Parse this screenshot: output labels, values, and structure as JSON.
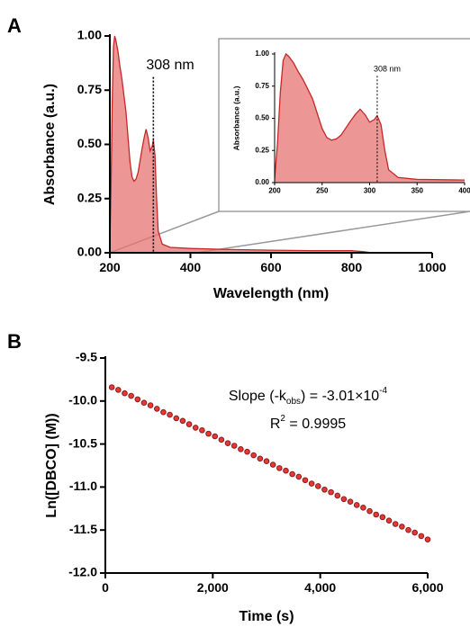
{
  "chart_data": [
    {
      "type": "area",
      "panel": "A",
      "xlabel": "Wavelength (nm)",
      "ylabel": "Absorbance (a.u.)",
      "x": [
        200,
        203,
        206,
        209,
        212,
        215,
        220,
        225,
        230,
        240,
        250,
        255,
        260,
        265,
        270,
        280,
        285,
        290,
        295,
        300,
        305,
        308,
        312,
        316,
        320,
        330,
        350,
        400,
        500,
        600,
        700,
        800,
        830,
        850,
        1000
      ],
      "values": [
        0.03,
        0.3,
        0.7,
        0.95,
        1.0,
        0.98,
        0.93,
        0.86,
        0.8,
        0.65,
        0.42,
        0.35,
        0.33,
        0.34,
        0.37,
        0.48,
        0.53,
        0.57,
        0.53,
        0.47,
        0.49,
        0.52,
        0.45,
        0.25,
        0.1,
        0.04,
        0.025,
        0.02,
        0.015,
        0.012,
        0.01,
        0.01,
        0.005,
        0.0,
        0.0
      ],
      "color": "#e57373",
      "line_color": "#c62828",
      "xlim": [
        200,
        1000
      ],
      "xticks": [
        200,
        400,
        600,
        800,
        1000
      ],
      "ylim": [
        0,
        1
      ],
      "yticks": [
        {
          "value": 0,
          "label": "0.00"
        },
        {
          "value": 0.25,
          "label": "0.25"
        },
        {
          "value": 0.5,
          "label": "0.50"
        },
        {
          "value": 0.75,
          "label": "0.75"
        },
        {
          "value": 1,
          "label": "1.00"
        }
      ],
      "annotation": {
        "text": "308 nm",
        "x": 308
      }
    },
    {
      "type": "area",
      "ylabel": "Absorbance (a.u.)",
      "x": [
        200,
        203,
        206,
        209,
        212,
        215,
        220,
        225,
        230,
        240,
        250,
        255,
        260,
        265,
        270,
        280,
        285,
        290,
        295,
        300,
        305,
        308,
        312,
        316,
        320,
        330,
        350,
        400
      ],
      "values": [
        0.03,
        0.3,
        0.7,
        0.95,
        1.0,
        0.98,
        0.93,
        0.86,
        0.8,
        0.65,
        0.42,
        0.35,
        0.33,
        0.34,
        0.37,
        0.48,
        0.53,
        0.57,
        0.53,
        0.47,
        0.49,
        0.52,
        0.45,
        0.25,
        0.1,
        0.04,
        0.025,
        0.02
      ],
      "color": "#e57373",
      "line_color": "#c62828",
      "xlim": [
        200,
        400
      ],
      "xticks": [
        200,
        250,
        300,
        350,
        400
      ],
      "ylim": [
        0,
        1
      ],
      "yticks": [
        {
          "value": 0,
          "label": "0.00"
        },
        {
          "value": 0.25,
          "label": "0.25"
        },
        {
          "value": 0.5,
          "label": "0.50"
        },
        {
          "value": 0.75,
          "label": "0.75"
        },
        {
          "value": 1,
          "label": "1.00"
        }
      ],
      "annotation": {
        "text": "308 nm",
        "x": 308
      }
    },
    {
      "type": "scatter",
      "panel": "B",
      "xlabel": "Time (s)",
      "ylabel": "Ln([DBCO] (M))",
      "x": [
        120,
        240,
        360,
        480,
        600,
        720,
        840,
        960,
        1080,
        1200,
        1320,
        1440,
        1560,
        1680,
        1800,
        1920,
        2040,
        2160,
        2280,
        2400,
        2520,
        2640,
        2760,
        2880,
        3000,
        3120,
        3240,
        3360,
        3480,
        3600,
        3720,
        3840,
        3960,
        4080,
        4200,
        4320,
        4440,
        4560,
        4680,
        4800,
        4920,
        5040,
        5160,
        5280,
        5400,
        5520,
        5640,
        5760,
        5880,
        6000
      ],
      "values": [
        -9.84,
        -9.87,
        -9.91,
        -9.94,
        -9.98,
        -10.02,
        -10.05,
        -10.09,
        -10.13,
        -10.16,
        -10.2,
        -10.23,
        -10.27,
        -10.31,
        -10.34,
        -10.38,
        -10.41,
        -10.45,
        -10.49,
        -10.52,
        -10.56,
        -10.59,
        -10.63,
        -10.67,
        -10.7,
        -10.74,
        -10.78,
        -10.81,
        -10.85,
        -10.88,
        -10.92,
        -10.96,
        -10.99,
        -11.03,
        -11.06,
        -11.1,
        -11.14,
        -11.17,
        -11.21,
        -11.24,
        -11.28,
        -11.32,
        -11.35,
        -11.39,
        -11.43,
        -11.46,
        -11.5,
        -11.53,
        -11.57,
        -11.61
      ],
      "color": "#e53935",
      "edge_color": "#8e1b1b",
      "xlim": [
        0,
        6000
      ],
      "xticks": [
        0,
        {
          "value": 2000,
          "label": "2,000"
        },
        {
          "value": 4000,
          "label": "4,000"
        },
        {
          "value": 6000,
          "label": "6,000"
        }
      ],
      "ylim": [
        -12,
        -9.5
      ],
      "yticks": [
        {
          "value": -12,
          "label": "-12.0"
        },
        -11.5,
        {
          "value": -11,
          "label": "-11.0"
        },
        -10.5,
        {
          "value": -10,
          "label": "-10.0"
        },
        -9.5
      ],
      "annotations": [
        [
          {
            "text": "Slope (-k"
          },
          {
            "text": "obs",
            "style": "sub"
          },
          {
            "text": ") = -3.01×10"
          },
          {
            "text": "-4",
            "style": "super"
          }
        ],
        [
          {
            "text": "R"
          },
          {
            "text": "2",
            "style": "super"
          },
          {
            "text": " = 0.9995"
          }
        ]
      ]
    }
  ]
}
